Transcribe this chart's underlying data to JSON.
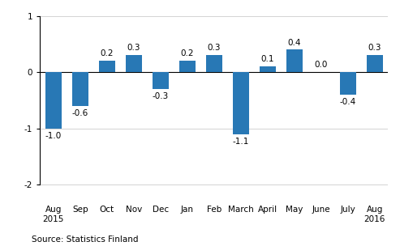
{
  "categories": [
    "Aug\n2015",
    "Sep",
    "Oct",
    "Nov",
    "Dec",
    "Jan",
    "Feb",
    "March",
    "April",
    "May",
    "June",
    "July",
    "Aug\n2016"
  ],
  "values": [
    -1.0,
    -0.6,
    0.2,
    0.3,
    -0.3,
    0.2,
    0.3,
    -1.1,
    0.1,
    0.4,
    0.0,
    -0.4,
    0.3
  ],
  "bar_color": "#2878b5",
  "ylim": [
    -2.3,
    1.15
  ],
  "yticks": [
    -2,
    -1,
    0,
    1
  ],
  "source_text": "Source: Statistics Finland",
  "bar_width": 0.6,
  "value_fontsize": 7.5,
  "tick_fontsize": 7.5,
  "source_fontsize": 7.5
}
